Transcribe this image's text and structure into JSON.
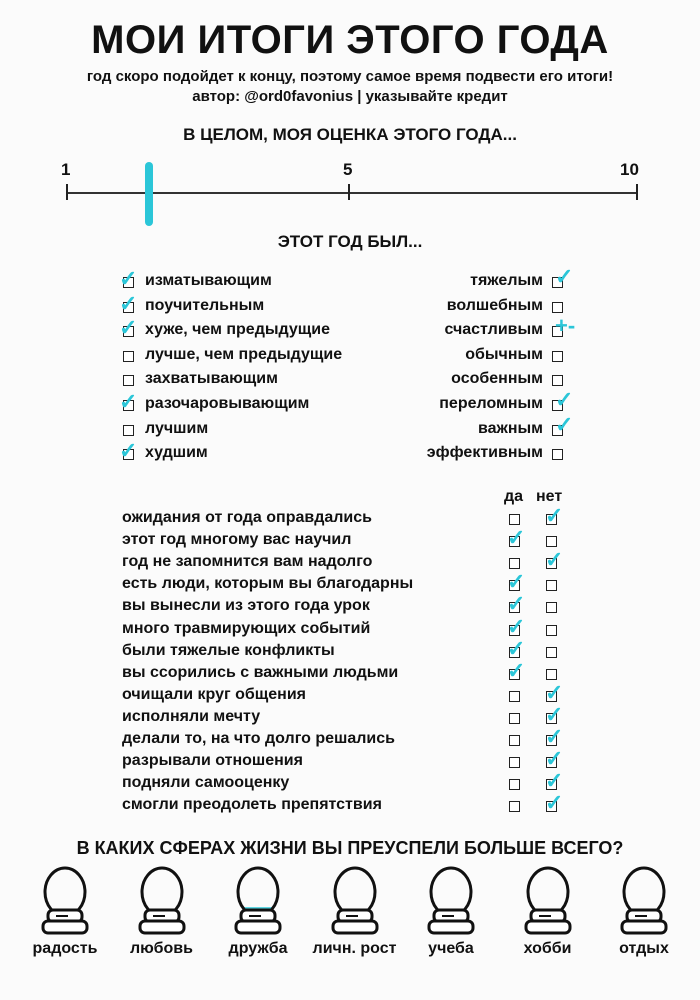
{
  "title": "МОИ ИТОГИ ЭТОГО ГОДА",
  "subtitle": "год скоро подойдет к концу, поэтому самое время подвести его итоги!",
  "author": "автор: @ord0favonius | указывайте кредит",
  "rating": {
    "heading": "В ЦЕЛОМ, МОЯ ОЦЕНКА ЭТОГО ГОДА...",
    "min_label": "1",
    "mid_label": "5",
    "max_label": "10",
    "min": 1,
    "max": 10,
    "value": 2.3,
    "accent": "#2bc6d8"
  },
  "year_was": {
    "heading": "ЭТОТ ГОД БЫЛ...",
    "left": [
      {
        "label": "изматывающим",
        "mark": "✓"
      },
      {
        "label": "поучительным",
        "mark": "✓"
      },
      {
        "label": "хуже, чем предыдущие",
        "mark": "✓"
      },
      {
        "label": "лучше, чем предыдущие",
        "mark": ""
      },
      {
        "label": "захватывающим",
        "mark": ""
      },
      {
        "label": "разочаровывающим",
        "mark": "✓"
      },
      {
        "label": "лучшим",
        "mark": ""
      },
      {
        "label": "худшим",
        "mark": "✓"
      }
    ],
    "right": [
      {
        "label": "тяжелым",
        "mark": "✓"
      },
      {
        "label": "волшебным",
        "mark": ""
      },
      {
        "label": "счастливым",
        "mark": "+-"
      },
      {
        "label": "обычным",
        "mark": ""
      },
      {
        "label": "особенным",
        "mark": ""
      },
      {
        "label": "переломным",
        "mark": "✓"
      },
      {
        "label": "важным",
        "mark": "✓"
      },
      {
        "label": "эффективным",
        "mark": ""
      }
    ]
  },
  "yes_no": {
    "yes_label": "да",
    "no_label": "нет",
    "rows": [
      {
        "label": "ожидания от года оправдались",
        "answer": "no"
      },
      {
        "label": "этот год многому вас научил",
        "answer": "yes"
      },
      {
        "label": "год не запомнится вам надолго",
        "answer": "no"
      },
      {
        "label": "есть люди, которым вы благодарны",
        "answer": "yes"
      },
      {
        "label": "вы вынесли из этого года урок",
        "answer": "yes"
      },
      {
        "label": "много травмирующих событий",
        "answer": "yes"
      },
      {
        "label": "были тяжелые конфликты",
        "answer": "yes"
      },
      {
        "label": "вы ссорились с важными людьми",
        "answer": "yes"
      },
      {
        "label": "очищали круг общения",
        "answer": "no"
      },
      {
        "label": "исполняли мечту",
        "answer": "no"
      },
      {
        "label": "делали то, на что долго решались",
        "answer": "no"
      },
      {
        "label": "разрывали отношения",
        "answer": "no"
      },
      {
        "label": "подняли самооценку",
        "answer": "no"
      },
      {
        "label": "смогли преодолеть препятствия",
        "answer": "no"
      }
    ]
  },
  "spheres": {
    "heading": "В КАКИХ СФЕРАХ ЖИЗНИ ВЫ ПРЕУСПЕЛИ БОЛЬШЕ ВСЕГО?",
    "items": [
      {
        "label": "радость",
        "fill": 0.1
      },
      {
        "label": "любовь",
        "fill": 0.05
      },
      {
        "label": "дружба",
        "fill": 0.15
      },
      {
        "label": "личн. рост",
        "fill": 0.05
      },
      {
        "label": "учеба",
        "fill": 0.08
      },
      {
        "label": "хобби",
        "fill": 0
      },
      {
        "label": "отдых",
        "fill": 0
      }
    ]
  }
}
